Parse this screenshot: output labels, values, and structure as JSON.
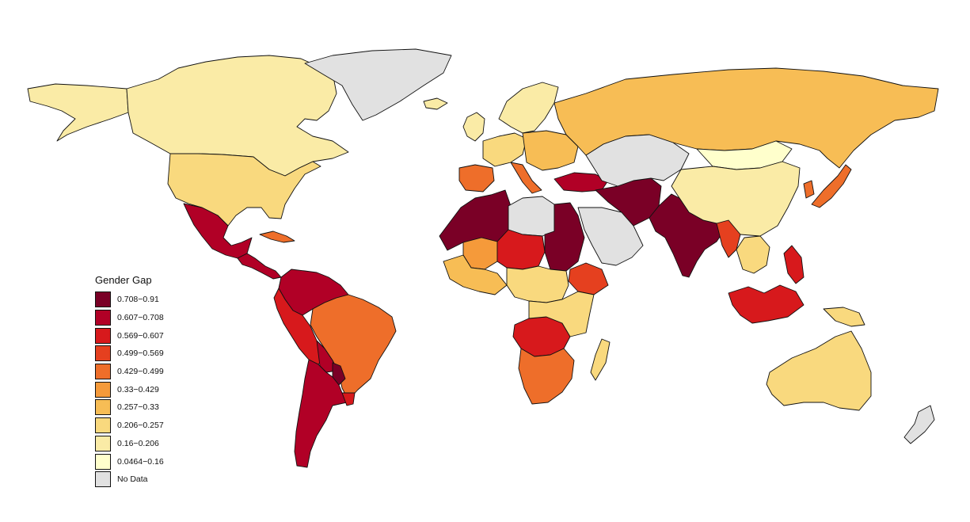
{
  "legend": {
    "title": "Gender Gap",
    "items": [
      {
        "label": "0.708−0.91",
        "color": "#7a0026"
      },
      {
        "label": "0.607−0.708",
        "color": "#b10026"
      },
      {
        "label": "0.569−0.607",
        "color": "#d7191c"
      },
      {
        "label": "0.499−0.569",
        "color": "#e5401f"
      },
      {
        "label": "0.429−0.499",
        "color": "#ee6e2a"
      },
      {
        "label": "0.33−0.429",
        "color": "#f59a3a"
      },
      {
        "label": "0.257−0.33",
        "color": "#f7bd55"
      },
      {
        "label": "0.206−0.257",
        "color": "#f9d97e"
      },
      {
        "label": "0.16−0.206",
        "color": "#faeba6"
      },
      {
        "label": "0.0464−0.16",
        "color": "#ffffcc"
      },
      {
        "label": "No Data",
        "color": "#e1e1e1"
      }
    ]
  },
  "regions": [
    {
      "name": "alaska",
      "color": "#faeba6"
    },
    {
      "name": "canada",
      "color": "#faeba6"
    },
    {
      "name": "greenland",
      "color": "#e1e1e1"
    },
    {
      "name": "usa",
      "color": "#f9d97e"
    },
    {
      "name": "mexico",
      "color": "#b10026"
    },
    {
      "name": "central-america",
      "color": "#b10026"
    },
    {
      "name": "cuba",
      "color": "#ee6e2a"
    },
    {
      "name": "colombia-venezuela",
      "color": "#b10026"
    },
    {
      "name": "ecuador-peru",
      "color": "#d7191c"
    },
    {
      "name": "brazil",
      "color": "#ee6e2a"
    },
    {
      "name": "bolivia",
      "color": "#b10026"
    },
    {
      "name": "paraguay",
      "color": "#7a0026"
    },
    {
      "name": "chile-argentina",
      "color": "#b10026"
    },
    {
      "name": "uruguay",
      "color": "#d7191c"
    },
    {
      "name": "iceland",
      "color": "#faeba6"
    },
    {
      "name": "uk-ireland",
      "color": "#faeba6"
    },
    {
      "name": "scandinavia",
      "color": "#faeba6"
    },
    {
      "name": "iberia",
      "color": "#ee6e2a"
    },
    {
      "name": "western-europe",
      "color": "#f9d97e"
    },
    {
      "name": "italy",
      "color": "#ee6e2a"
    },
    {
      "name": "eastern-europe",
      "color": "#f7bd55"
    },
    {
      "name": "russia",
      "color": "#f7bd55"
    },
    {
      "name": "turkey",
      "color": "#b10026"
    },
    {
      "name": "north-africa-west",
      "color": "#7a0026"
    },
    {
      "name": "algeria-libya",
      "color": "#e1e1e1"
    },
    {
      "name": "egypt-sudan",
      "color": "#7a0026"
    },
    {
      "name": "sahel",
      "color": "#f59a3a"
    },
    {
      "name": "chad-niger",
      "color": "#d7191c"
    },
    {
      "name": "west-africa",
      "color": "#f7bd55"
    },
    {
      "name": "ethiopia",
      "color": "#e5401f"
    },
    {
      "name": "central-africa",
      "color": "#f9d97e"
    },
    {
      "name": "congo",
      "color": "#d7191c"
    },
    {
      "name": "east-africa",
      "color": "#f9d97e"
    },
    {
      "name": "southern-africa",
      "color": "#ee6e2a"
    },
    {
      "name": "madagascar",
      "color": "#f9d97e"
    },
    {
      "name": "arabia",
      "color": "#e1e1e1"
    },
    {
      "name": "iran-afghanistan",
      "color": "#7a0026"
    },
    {
      "name": "central-asia",
      "color": "#e1e1e1"
    },
    {
      "name": "mongolia",
      "color": "#ffffcc"
    },
    {
      "name": "china",
      "color": "#faeba6"
    },
    {
      "name": "india-pakistan",
      "color": "#7a0026"
    },
    {
      "name": "myanmar",
      "color": "#e5401f"
    },
    {
      "name": "southeast-asia",
      "color": "#f9d97e"
    },
    {
      "name": "indonesia",
      "color": "#d7191c"
    },
    {
      "name": "philippines",
      "color": "#d7191c"
    },
    {
      "name": "japan",
      "color": "#ee6e2a"
    },
    {
      "name": "korea",
      "color": "#ee6e2a"
    },
    {
      "name": "australia",
      "color": "#f9d97e"
    },
    {
      "name": "new-zealand",
      "color": "#e1e1e1"
    },
    {
      "name": "papua",
      "color": "#f9d97e"
    }
  ]
}
